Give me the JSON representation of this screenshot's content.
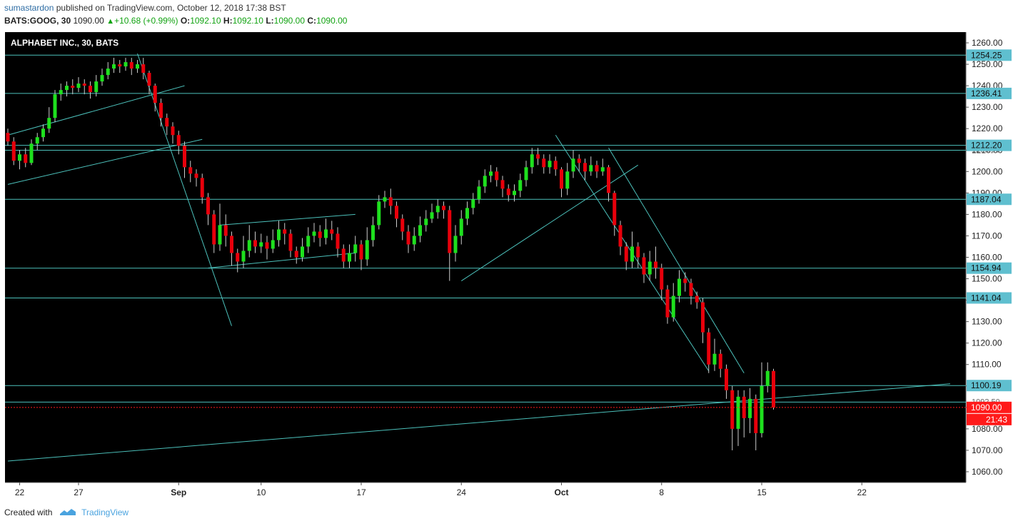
{
  "header": {
    "author": "sumastardon",
    "published_text": "published on TradingView.com, October 12, 2018 17:38 BST",
    "symbol": "BATS:GOOG, 30",
    "last": "1090.00",
    "change_arrow": "▲",
    "change": "+10.68 (+0.99%)",
    "o_label": "O:",
    "o": "1092.10",
    "h_label": "H:",
    "h": "1092.10",
    "l_label": "L:",
    "l": "1090.00",
    "c_label": "C:",
    "c": "1090.00"
  },
  "footer": {
    "created_with": "Created with",
    "brand": "TradingView",
    "logo_icon": "tradingview-logo-icon"
  },
  "chart_data": {
    "type": "candlestick",
    "title": "ALPHABET INC., 30, BATS",
    "ylim": [
      1055,
      1265
    ],
    "y_ticks": [
      1060,
      1070,
      1080,
      1090,
      1100,
      1110,
      1120,
      1130,
      1140,
      1150,
      1160,
      1170,
      1180,
      1190,
      1200,
      1210,
      1220,
      1230,
      1240,
      1250,
      1260
    ],
    "x_ticks": [
      {
        "label": "22",
        "bar": 2
      },
      {
        "label": "27",
        "bar": 12
      },
      {
        "label": "Sep",
        "bar": 29
      },
      {
        "label": "10",
        "bar": 43
      },
      {
        "label": "17",
        "bar": 60
      },
      {
        "label": "24",
        "bar": 77
      },
      {
        "label": "Oct",
        "bar": 94
      },
      {
        "label": "8",
        "bar": 111
      },
      {
        "label": "15",
        "bar": 128
      },
      {
        "label": "22",
        "bar": 145
      }
    ],
    "x_range": [
      0,
      161
    ],
    "price_levels": [
      1254.25,
      1236.41,
      1212.2,
      1209.91,
      1187.04,
      1154.94,
      1141.04,
      1100.19,
      1092.5
    ],
    "price_labels": [
      "1254.25",
      "1236.41",
      "1212.20",
      "1187.04",
      "1154.94",
      "1141.04",
      "1100.19"
    ],
    "hidden_labels": [
      "1209.91",
      "1092.50"
    ],
    "current_price": 1090.0,
    "current_price_label": "1090.00",
    "countdown": "21:43",
    "trendlines": [
      {
        "from": [
          0,
          1217
        ],
        "to": [
          30,
          1240
        ]
      },
      {
        "from": [
          0,
          1194
        ],
        "to": [
          33,
          1215
        ]
      },
      {
        "from": [
          22,
          1255
        ],
        "to": [
          38,
          1128
        ]
      },
      {
        "from": [
          34,
          1155
        ],
        "to": [
          59,
          1162
        ]
      },
      {
        "from": [
          36,
          1175
        ],
        "to": [
          59,
          1180
        ]
      },
      {
        "from": [
          77,
          1149
        ],
        "to": [
          107,
          1203
        ]
      },
      {
        "from": [
          93,
          1217
        ],
        "to": [
          119,
          1107
        ]
      },
      {
        "from": [
          102,
          1211
        ],
        "to": [
          125,
          1106
        ]
      },
      {
        "from": [
          0,
          1065
        ],
        "to": [
          160,
          1101
        ]
      }
    ],
    "candles": [
      [
        1218,
        1214,
        1220,
        1212
      ],
      [
        1214,
        1205,
        1216,
        1203
      ],
      [
        1205,
        1208,
        1210,
        1201
      ],
      [
        1208,
        1204,
        1211,
        1202
      ],
      [
        1204,
        1213,
        1215,
        1203
      ],
      [
        1213,
        1216,
        1218,
        1210
      ],
      [
        1216,
        1220,
        1222,
        1214
      ],
      [
        1220,
        1225,
        1230,
        1218
      ],
      [
        1225,
        1236,
        1238,
        1223
      ],
      [
        1236,
        1238,
        1241,
        1233
      ],
      [
        1238,
        1240,
        1242,
        1235
      ],
      [
        1240,
        1239,
        1243,
        1236
      ],
      [
        1239,
        1241,
        1244,
        1237
      ],
      [
        1241,
        1240,
        1243,
        1236
      ],
      [
        1240,
        1237,
        1242,
        1234
      ],
      [
        1237,
        1242,
        1245,
        1235
      ],
      [
        1242,
        1245,
        1248,
        1240
      ],
      [
        1245,
        1248,
        1251,
        1243
      ],
      [
        1248,
        1250,
        1253,
        1246
      ],
      [
        1250,
        1249,
        1252,
        1246
      ],
      [
        1249,
        1251,
        1253,
        1247
      ],
      [
        1251,
        1248,
        1253,
        1245
      ],
      [
        1248,
        1250,
        1252,
        1246
      ],
      [
        1250,
        1246,
        1253,
        1243
      ],
      [
        1246,
        1240,
        1247,
        1236
      ],
      [
        1240,
        1232,
        1241,
        1228
      ],
      [
        1232,
        1225,
        1234,
        1221
      ],
      [
        1225,
        1221,
        1227,
        1217
      ],
      [
        1221,
        1217,
        1223,
        1213
      ],
      [
        1217,
        1212,
        1219,
        1208
      ],
      [
        1212,
        1202,
        1214,
        1197
      ],
      [
        1202,
        1199,
        1205,
        1195
      ],
      [
        1199,
        1197,
        1201,
        1193
      ],
      [
        1197,
        1188,
        1199,
        1185
      ],
      [
        1188,
        1180,
        1190,
        1175
      ],
      [
        1180,
        1166,
        1182,
        1162
      ],
      [
        1166,
        1175,
        1185,
        1163
      ],
      [
        1175,
        1170,
        1180,
        1165
      ],
      [
        1170,
        1162,
        1172,
        1156
      ],
      [
        1162,
        1158,
        1164,
        1153
      ],
      [
        1158,
        1163,
        1170,
        1155
      ],
      [
        1163,
        1168,
        1175,
        1160
      ],
      [
        1168,
        1165,
        1172,
        1162
      ],
      [
        1165,
        1167,
        1171,
        1162
      ],
      [
        1167,
        1164,
        1170,
        1159
      ],
      [
        1164,
        1168,
        1173,
        1162
      ],
      [
        1168,
        1173,
        1177,
        1165
      ],
      [
        1173,
        1171,
        1176,
        1166
      ],
      [
        1171,
        1163,
        1173,
        1160
      ],
      [
        1163,
        1160,
        1165,
        1157
      ],
      [
        1160,
        1165,
        1169,
        1158
      ],
      [
        1165,
        1170,
        1174,
        1162
      ],
      [
        1170,
        1172,
        1176,
        1167
      ],
      [
        1172,
        1169,
        1175,
        1165
      ],
      [
        1169,
        1173,
        1178,
        1166
      ],
      [
        1173,
        1171,
        1177,
        1168
      ],
      [
        1171,
        1164,
        1174,
        1160
      ],
      [
        1164,
        1158,
        1166,
        1155
      ],
      [
        1158,
        1162,
        1166,
        1155
      ],
      [
        1162,
        1166,
        1170,
        1158
      ],
      [
        1166,
        1159,
        1168,
        1154
      ],
      [
        1159,
        1168,
        1174,
        1156
      ],
      [
        1168,
        1175,
        1179,
        1165
      ],
      [
        1175,
        1186,
        1189,
        1173
      ],
      [
        1186,
        1188,
        1191,
        1183
      ],
      [
        1188,
        1184,
        1192,
        1180
      ],
      [
        1184,
        1178,
        1186,
        1174
      ],
      [
        1178,
        1172,
        1180,
        1168
      ],
      [
        1172,
        1166,
        1175,
        1162
      ],
      [
        1166,
        1170,
        1174,
        1163
      ],
      [
        1170,
        1175,
        1179,
        1167
      ],
      [
        1175,
        1178,
        1182,
        1172
      ],
      [
        1178,
        1181,
        1185,
        1176
      ],
      [
        1181,
        1184,
        1187,
        1178
      ],
      [
        1184,
        1182,
        1186,
        1178
      ],
      [
        1182,
        1162,
        1184,
        1149
      ],
      [
        1162,
        1170,
        1175,
        1158
      ],
      [
        1170,
        1178,
        1182,
        1166
      ],
      [
        1178,
        1183,
        1186,
        1175
      ],
      [
        1183,
        1187,
        1190,
        1180
      ],
      [
        1187,
        1193,
        1196,
        1185
      ],
      [
        1193,
        1198,
        1201,
        1190
      ],
      [
        1198,
        1200,
        1203,
        1195
      ],
      [
        1200,
        1196,
        1202,
        1193
      ],
      [
        1196,
        1192,
        1198,
        1188
      ],
      [
        1192,
        1189,
        1194,
        1186
      ],
      [
        1189,
        1191,
        1194,
        1186
      ],
      [
        1191,
        1196,
        1199,
        1188
      ],
      [
        1196,
        1202,
        1205,
        1193
      ],
      [
        1202,
        1208,
        1211,
        1199
      ],
      [
        1208,
        1206,
        1211,
        1203
      ],
      [
        1206,
        1202,
        1208,
        1199
      ],
      [
        1202,
        1205,
        1208,
        1199
      ],
      [
        1205,
        1201,
        1207,
        1198
      ],
      [
        1201,
        1192,
        1202,
        1188
      ],
      [
        1192,
        1200,
        1204,
        1189
      ],
      [
        1200,
        1206,
        1210,
        1197
      ],
      [
        1206,
        1204,
        1208,
        1200
      ],
      [
        1204,
        1200,
        1206,
        1196
      ],
      [
        1200,
        1203,
        1207,
        1198
      ],
      [
        1203,
        1200,
        1205,
        1197
      ],
      [
        1200,
        1202,
        1206,
        1198
      ],
      [
        1202,
        1190,
        1203,
        1186
      ],
      [
        1190,
        1175,
        1191,
        1170
      ],
      [
        1175,
        1165,
        1177,
        1161
      ],
      [
        1165,
        1158,
        1167,
        1154
      ],
      [
        1158,
        1165,
        1172,
        1155
      ],
      [
        1165,
        1160,
        1167,
        1155
      ],
      [
        1160,
        1152,
        1162,
        1148
      ],
      [
        1152,
        1158,
        1163,
        1149
      ],
      [
        1158,
        1155,
        1165,
        1150
      ],
      [
        1155,
        1145,
        1157,
        1140
      ],
      [
        1145,
        1132,
        1147,
        1129
      ],
      [
        1132,
        1142,
        1148,
        1130
      ],
      [
        1142,
        1150,
        1154,
        1139
      ],
      [
        1150,
        1148,
        1153,
        1144
      ],
      [
        1148,
        1142,
        1150,
        1138
      ],
      [
        1142,
        1139,
        1144,
        1136
      ],
      [
        1139,
        1125,
        1141,
        1120
      ],
      [
        1125,
        1110,
        1127,
        1106
      ],
      [
        1110,
        1115,
        1122,
        1107
      ],
      [
        1115,
        1108,
        1117,
        1104
      ],
      [
        1108,
        1098,
        1110,
        1094
      ],
      [
        1098,
        1080,
        1100,
        1070
      ],
      [
        1080,
        1095,
        1098,
        1072
      ],
      [
        1095,
        1085,
        1098,
        1076
      ],
      [
        1085,
        1094,
        1099,
        1078
      ],
      [
        1094,
        1078,
        1096,
        1070
      ],
      [
        1078,
        1100,
        1111,
        1076
      ],
      [
        1100,
        1107,
        1111,
        1097
      ],
      [
        1107,
        1090,
        1108,
        1089
      ]
    ]
  },
  "colors": {
    "up": "#1ee01e",
    "down": "#e8000b",
    "wick": "#cccccc",
    "level_line": "#4cc1bb",
    "label_bg": "#5fbfcf",
    "current": "#ff1a1a",
    "background": "#000000",
    "axis_text": "#222222"
  }
}
